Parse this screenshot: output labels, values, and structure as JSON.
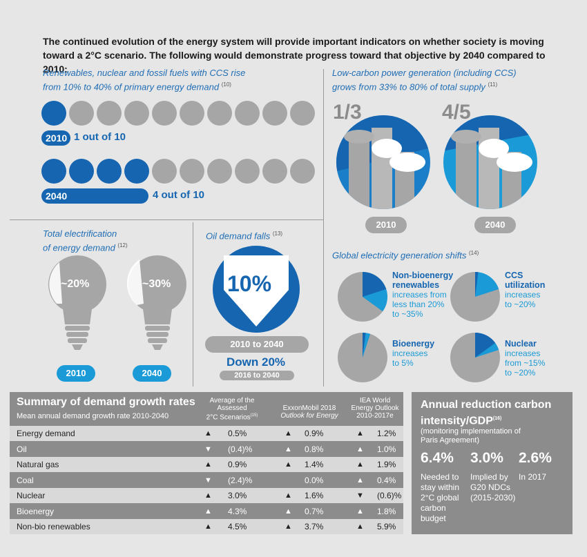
{
  "intro": "The continued evolution of the energy system will provide important indicators on whether society is moving toward a 2°C scenario. The following would demonstrate progress toward that objective by 2040 compared to 2010:",
  "renewables": {
    "title_line1": "Renewables, nuclear and fossil fuels with CCS rise",
    "title_line2": "from 10% to 40% of primary energy demand",
    "note": "(10)",
    "row1_year": "2010",
    "row1_text": "1 out of 10",
    "row1_filled": 1,
    "row2_year": "2040",
    "row2_text": "4 out of 10",
    "row2_filled": 4,
    "total_dots": 10
  },
  "lowcarbon": {
    "title_line1": "Low-carbon power generation (including CCS)",
    "title_line2": "grows from 33% to 80% of total supply",
    "note": "(11)",
    "left_fraction": "1/3",
    "right_fraction": "4/5",
    "left_year": "2010",
    "right_year": "2040",
    "left_share": 0.333,
    "right_share": 0.8
  },
  "electrification": {
    "title_line1": "Total electrification",
    "title_line2": "of energy demand",
    "note": "(12)",
    "left_value": "~20%",
    "right_value": "~30%",
    "left_year": "2010",
    "right_year": "2040"
  },
  "oil": {
    "title": "Oil demand falls",
    "note": "(13)",
    "value": "10%",
    "range": "2010 to 2040",
    "down": "Down 20%",
    "down_range": "2016 to 2040"
  },
  "shifts": {
    "title": "Global electricity generation shifts",
    "note": "(14)",
    "items": [
      {
        "head1": "Non-bioenergy",
        "head2": "renewables",
        "body": [
          "increases from",
          "less than 20%",
          "to ~35%"
        ],
        "from": 0.2,
        "to": 0.35
      },
      {
        "head1": "CCS",
        "head2": "utilization",
        "body": [
          "increases",
          "to ~20%"
        ],
        "from": 0.02,
        "to": 0.2
      },
      {
        "head1": "Bioenergy",
        "head2": "",
        "body": [
          "increases",
          "to 5%"
        ],
        "from": 0.02,
        "to": 0.05
      },
      {
        "head1": "Nuclear",
        "head2": "",
        "body": [
          "increases",
          "from ~15%",
          "to ~20%"
        ],
        "from": 0.15,
        "to": 0.2
      }
    ]
  },
  "summary": {
    "title": "Summary of demand growth rates",
    "subtitle": "Mean annual demand growth rate 2010-2040",
    "col1": [
      "Average of the",
      "Assessed",
      "2°C Scenarios"
    ],
    "col1_note": "(15)",
    "col2": [
      "ExxonMobil 2018",
      "Outlook for Energy"
    ],
    "col3": [
      "IEA World",
      "Energy Outlook",
      "2010-2017e"
    ],
    "rows": [
      {
        "label": "Energy demand",
        "a_dir": "up",
        "a": "0.5%",
        "b_dir": "up",
        "b": "0.9%",
        "c_dir": "up",
        "c": "1.2%"
      },
      {
        "label": "Oil",
        "a_dir": "down",
        "a": "(0.4)%",
        "b_dir": "up",
        "b": "0.8%",
        "c_dir": "up",
        "c": "1.0%"
      },
      {
        "label": "Natural gas",
        "a_dir": "up",
        "a": "0.9%",
        "b_dir": "up",
        "b": "1.4%",
        "c_dir": "up",
        "c": "1.9%"
      },
      {
        "label": "Coal",
        "a_dir": "down",
        "a": "(2.4)%",
        "b_dir": "",
        "b": "0.0%",
        "c_dir": "up",
        "c": "0.4%"
      },
      {
        "label": "Nuclear",
        "a_dir": "up",
        "a": "3.0%",
        "b_dir": "up",
        "b": "1.6%",
        "c_dir": "down",
        "c": "(0.6)%"
      },
      {
        "label": "Bioenergy",
        "a_dir": "up",
        "a": "4.3%",
        "b_dir": "up",
        "b": "0.7%",
        "c_dir": "up",
        "c": "1.8%"
      },
      {
        "label": "Non-bio renewables",
        "a_dir": "up",
        "a": "4.5%",
        "b_dir": "up",
        "b": "3.7%",
        "c_dir": "up",
        "c": "5.9%"
      }
    ]
  },
  "annual": {
    "title_line1": "Annual reduction carbon",
    "title_line2": "intensity/GDP",
    "note": "(16)",
    "sub_line1": "(monitoring implementation of",
    "sub_line2": "Paris Agreement)",
    "values": [
      {
        "value": "6.4%",
        "desc": [
          "Needed to",
          "stay within",
          "2°C global",
          "carbon",
          "budget"
        ]
      },
      {
        "value": "3.0%",
        "desc": [
          "Implied by",
          "G20 NDCs",
          "(2015-2030)"
        ]
      },
      {
        "value": "2.6%",
        "desc": [
          "In 2017"
        ]
      }
    ]
  },
  "colors": {
    "dark_blue": "#1565b0",
    "light_blue": "#1a9ad6",
    "grey": "#a6a6a6",
    "panel": "#8c8c8c"
  }
}
